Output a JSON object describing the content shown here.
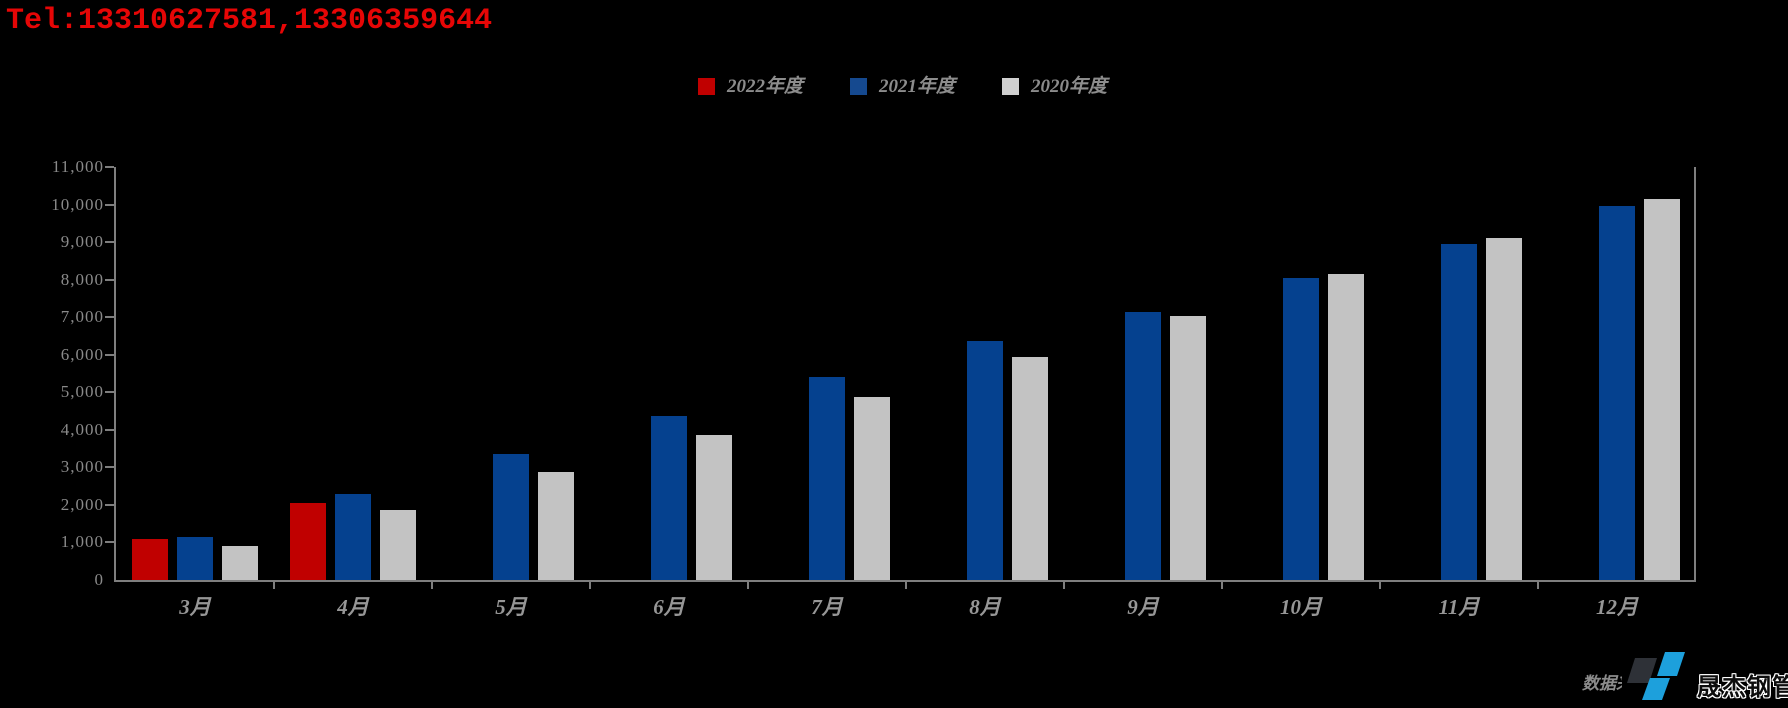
{
  "header": {
    "tel": "Tel:13310627581,13306359644"
  },
  "legend": {
    "items": [
      {
        "label": "2022年度",
        "color": "#c00000"
      },
      {
        "label": "2021年度",
        "color": "#15498f"
      },
      {
        "label": "2020年度",
        "color": "#d0d0d0"
      }
    ]
  },
  "chart_data": {
    "type": "bar",
    "title": "",
    "categories": [
      "3月",
      "4月",
      "5月",
      "6月",
      "7月",
      "8月",
      "9月",
      "10月",
      "11月",
      "12月"
    ],
    "series": [
      {
        "name": "2022年度",
        "color": "#c00000",
        "values": [
          1080,
          2060,
          null,
          null,
          null,
          null,
          null,
          null,
          null,
          null
        ]
      },
      {
        "name": "2021年度",
        "color": "#05418f",
        "values": [
          1150,
          2290,
          3350,
          4370,
          5400,
          6360,
          7150,
          8050,
          8950,
          9950
        ]
      },
      {
        "name": "2020年度",
        "color": "#c3c3c3",
        "values": [
          910,
          1860,
          2880,
          3860,
          4880,
          5950,
          7040,
          8150,
          9100,
          10150
        ]
      }
    ],
    "xlabel": "",
    "ylabel": "",
    "ylim": [
      0,
      11000
    ],
    "ytick_interval": 1000,
    "ytick_labels": [
      "0",
      "1,000",
      "2,000",
      "3,000",
      "4,000",
      "5,000",
      "6,000",
      "7,000",
      "8,000",
      "9,000",
      "10,000",
      "11,000"
    ],
    "grid": false,
    "legend_position": "top-center",
    "background": "#000000",
    "axis_color": "#7e7e7e"
  },
  "footer": {
    "source_text": "数据来源:",
    "logo_text": "晟杰钢管"
  }
}
